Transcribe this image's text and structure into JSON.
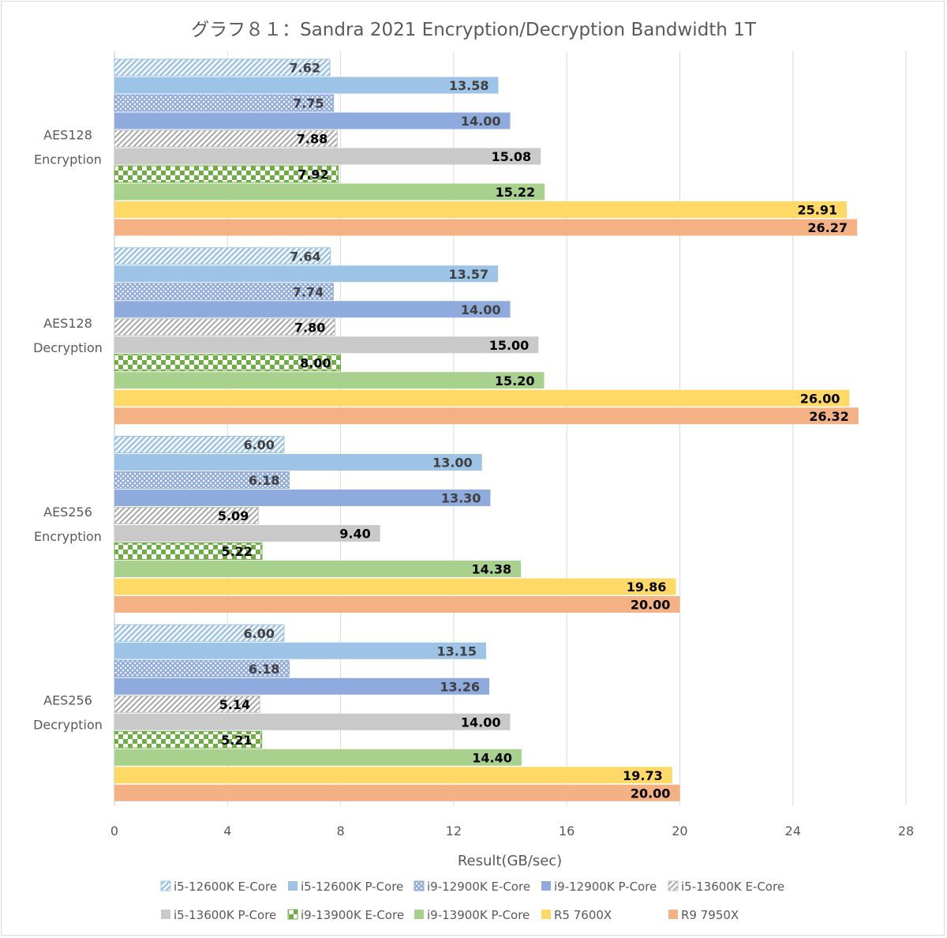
{
  "chart_data": {
    "type": "bar",
    "orientation": "horizontal",
    "title": "グラフ８１：Sandra 2021 Encryption/Decryption  Bandwidth  1T",
    "xlabel": "Result(GB/sec)",
    "ylabel": "",
    "xlim": [
      0,
      28
    ],
    "xticks": [
      0,
      4,
      8,
      12,
      16,
      20,
      24,
      28
    ],
    "grid": "vertical",
    "legend_position": "bottom",
    "categories": [
      [
        "AES128",
        "Encryption"
      ],
      [
        "AES128",
        "Decryption"
      ],
      [
        "AES256",
        "Encryption"
      ],
      [
        "AES256",
        "Decryption"
      ]
    ],
    "series": [
      {
        "name": "i5-12600K E-Core",
        "color": "#9dc3e6",
        "pattern": "diagonal",
        "label_color": "#404040",
        "values": [
          7.62,
          7.64,
          6.0,
          6.0
        ],
        "labels": [
          "7.62",
          "7.64",
          "6.00",
          "6.00"
        ]
      },
      {
        "name": "i5-12600K P-Core",
        "color": "#9dc3e6",
        "pattern": "solid",
        "label_color": "#404040",
        "values": [
          13.58,
          13.57,
          13.0,
          13.15
        ],
        "labels": [
          "13.58",
          "13.57",
          "13.00",
          "13.15"
        ]
      },
      {
        "name": "i9-12900K E-Core",
        "color": "#8faadc",
        "pattern": "crosshatch",
        "label_color": "#404040",
        "values": [
          7.75,
          7.74,
          6.18,
          6.18
        ],
        "labels": [
          "7.75",
          "7.74",
          "6.18",
          "6.18"
        ]
      },
      {
        "name": "i9-12900K P-Core",
        "color": "#8faadc",
        "pattern": "solid",
        "label_color": "#404040",
        "values": [
          14.0,
          14.0,
          13.3,
          13.26
        ],
        "labels": [
          "14.00",
          "14.00",
          "13.30",
          "13.26"
        ]
      },
      {
        "name": "i5-13600K E-Core",
        "color": "#bfbfbf",
        "pattern": "diagonal",
        "label_color": "#000000",
        "values": [
          7.88,
          7.8,
          5.09,
          5.14
        ],
        "labels": [
          "7.88",
          "7.80",
          "5.09",
          "5.14"
        ]
      },
      {
        "name": "i5-13600K P-Core",
        "color": "#c9c9c9",
        "pattern": "solid",
        "label_color": "#000000",
        "values": [
          15.08,
          15.0,
          9.4,
          14.0
        ],
        "labels": [
          "15.08",
          "15.00",
          "9.40",
          "14.00"
        ]
      },
      {
        "name": "i9-13900K E-Core",
        "color": "#70ad47",
        "pattern": "checker",
        "label_color": "#000000",
        "values": [
          7.92,
          8.0,
          5.22,
          5.21
        ],
        "labels": [
          "7.92",
          "8.00",
          "5.22",
          "5.21"
        ]
      },
      {
        "name": "i9-13900K P-Core",
        "color": "#a9d18e",
        "pattern": "solid",
        "label_color": "#000000",
        "values": [
          15.22,
          15.2,
          14.38,
          14.4
        ],
        "labels": [
          "15.22",
          "15.20",
          "14.38",
          "14.40"
        ]
      },
      {
        "name": "R5 7600X",
        "color": "#ffd966",
        "pattern": "solid",
        "label_color": "#000000",
        "values": [
          25.91,
          26.0,
          19.86,
          19.73
        ],
        "labels": [
          "25.91",
          "26.00",
          "19.86",
          "19.73"
        ]
      },
      {
        "name": "R9 7950X",
        "color": "#f4b183",
        "pattern": "solid",
        "label_color": "#000000",
        "values": [
          26.27,
          26.32,
          20.0,
          20.0
        ],
        "labels": [
          "26.27",
          "26.32",
          "20.00",
          "20.00"
        ]
      }
    ]
  }
}
